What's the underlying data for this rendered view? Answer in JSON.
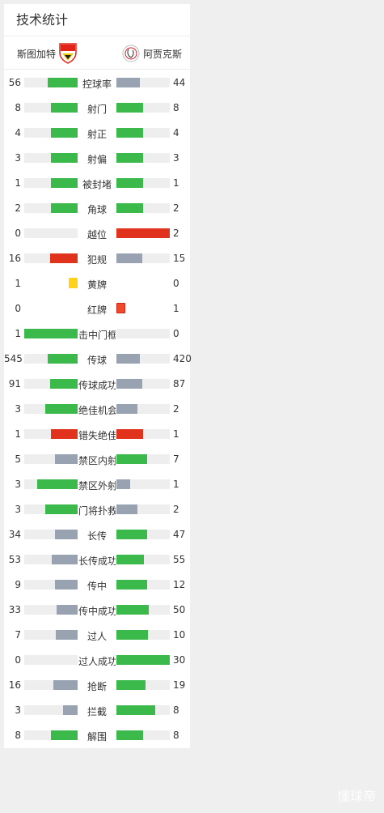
{
  "panel": {
    "title": "技术统计",
    "home_team": "斯图加特",
    "away_team": "阿贾克斯"
  },
  "colors": {
    "leading": "#3cb94b",
    "trailing": "#98a2b0",
    "offside": "#e0321c",
    "yellow": "#ffd21a",
    "red": "#f04a2a"
  },
  "stats": [
    {
      "label": "控球率",
      "home": "56",
      "away": "44",
      "home_frac": 0.56,
      "away_frac": 0.44,
      "home_color": "leading",
      "away_color": "trailing"
    },
    {
      "label": "射门",
      "home": "8",
      "away": "8",
      "home_frac": 0.5,
      "away_frac": 0.5,
      "home_color": "leading",
      "away_color": "leading"
    },
    {
      "label": "射正",
      "home": "4",
      "away": "4",
      "home_frac": 0.5,
      "away_frac": 0.5,
      "home_color": "leading",
      "away_color": "leading"
    },
    {
      "label": "射偏",
      "home": "3",
      "away": "3",
      "home_frac": 0.5,
      "away_frac": 0.5,
      "home_color": "leading",
      "away_color": "leading"
    },
    {
      "label": "被封堵",
      "home": "1",
      "away": "1",
      "home_frac": 0.5,
      "away_frac": 0.5,
      "home_color": "leading",
      "away_color": "leading"
    },
    {
      "label": "角球",
      "home": "2",
      "away": "2",
      "home_frac": 0.5,
      "away_frac": 0.5,
      "home_color": "leading",
      "away_color": "leading"
    },
    {
      "label": "越位",
      "home": "0",
      "away": "2",
      "home_frac": 0,
      "away_frac": 1,
      "home_color": "offside",
      "away_color": "offside"
    },
    {
      "label": "犯规",
      "home": "16",
      "away": "15",
      "home_frac": 0.52,
      "away_frac": 0.48,
      "home_color": "offside",
      "away_color": "trailing"
    },
    {
      "label": "黄牌",
      "home": "1",
      "away": "0",
      "card": "yellow",
      "card_side": "home"
    },
    {
      "label": "红牌",
      "home": "0",
      "away": "1",
      "card": "red",
      "card_side": "away"
    },
    {
      "label": "击中门框",
      "home": "1",
      "away": "0",
      "home_frac": 1,
      "away_frac": 0,
      "home_color": "leading",
      "away_color": "trailing"
    },
    {
      "label": "传球",
      "home": "545",
      "away": "420",
      "home_frac": 0.56,
      "away_frac": 0.44,
      "home_color": "leading",
      "away_color": "trailing"
    },
    {
      "label": "传球成功",
      "home": "91",
      "away": "87",
      "home_frac": 0.51,
      "away_frac": 0.49,
      "home_color": "leading",
      "away_color": "trailing"
    },
    {
      "label": "绝佳机会",
      "home": "3",
      "away": "2",
      "home_frac": 0.6,
      "away_frac": 0.4,
      "home_color": "leading",
      "away_color": "trailing"
    },
    {
      "label": "错失绝佳",
      "home": "1",
      "away": "1",
      "home_frac": 0.5,
      "away_frac": 0.5,
      "home_color": "offside",
      "away_color": "offside"
    },
    {
      "label": "禁区内射",
      "home": "5",
      "away": "7",
      "home_frac": 0.42,
      "away_frac": 0.58,
      "home_color": "trailing",
      "away_color": "leading"
    },
    {
      "label": "禁区外射",
      "home": "3",
      "away": "1",
      "home_frac": 0.75,
      "away_frac": 0.25,
      "home_color": "leading",
      "away_color": "trailing"
    },
    {
      "label": "门将扑救",
      "home": "3",
      "away": "2",
      "home_frac": 0.6,
      "away_frac": 0.4,
      "home_color": "leading",
      "away_color": "trailing"
    },
    {
      "label": "长传",
      "home": "34",
      "away": "47",
      "home_frac": 0.42,
      "away_frac": 0.58,
      "home_color": "trailing",
      "away_color": "leading"
    },
    {
      "label": "长传成功",
      "home": "53",
      "away": "55",
      "home_frac": 0.49,
      "away_frac": 0.51,
      "home_color": "trailing",
      "away_color": "leading"
    },
    {
      "label": "传中",
      "home": "9",
      "away": "12",
      "home_frac": 0.43,
      "away_frac": 0.57,
      "home_color": "trailing",
      "away_color": "leading"
    },
    {
      "label": "传中成功",
      "home": "33",
      "away": "50",
      "home_frac": 0.4,
      "away_frac": 0.6,
      "home_color": "trailing",
      "away_color": "leading"
    },
    {
      "label": "过人",
      "home": "7",
      "away": "10",
      "home_frac": 0.41,
      "away_frac": 0.59,
      "home_color": "trailing",
      "away_color": "leading"
    },
    {
      "label": "过人成功",
      "home": "0",
      "away": "30",
      "home_frac": 0,
      "away_frac": 1,
      "home_color": "trailing",
      "away_color": "leading"
    },
    {
      "label": "抢断",
      "home": "16",
      "away": "19",
      "home_frac": 0.46,
      "away_frac": 0.54,
      "home_color": "trailing",
      "away_color": "leading"
    },
    {
      "label": "拦截",
      "home": "3",
      "away": "8",
      "home_frac": 0.27,
      "away_frac": 0.73,
      "home_color": "trailing",
      "away_color": "leading"
    },
    {
      "label": "解围",
      "home": "8",
      "away": "8",
      "home_frac": 0.5,
      "away_frac": 0.5,
      "home_color": "leading",
      "away_color": "leading"
    }
  ],
  "watermark": "懂球帝"
}
